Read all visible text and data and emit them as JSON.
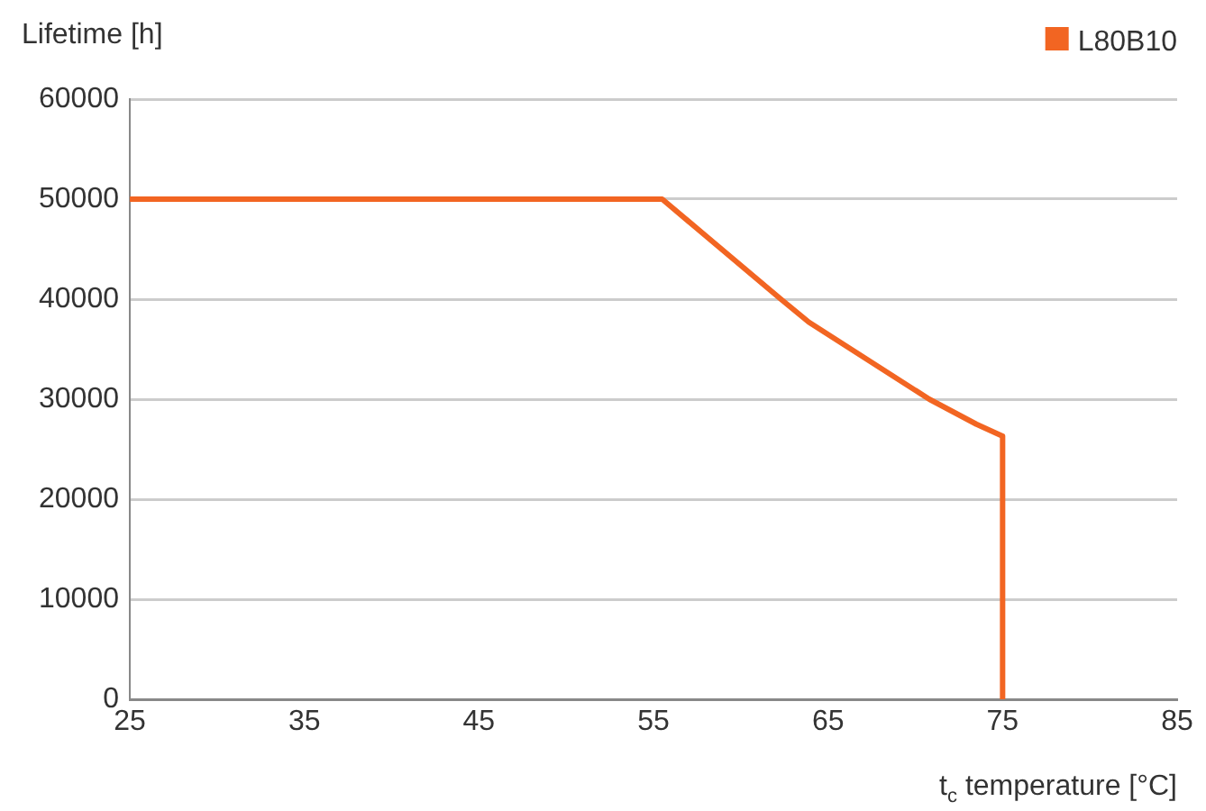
{
  "chart_data": {
    "type": "line",
    "xlabel": "t$_{c}$ temperature [°C]",
    "ylabel": "Lifetime [h]",
    "x": [
      25,
      55.5,
      62.3,
      63.9,
      70.8,
      73.5,
      75,
      75
    ],
    "series": [
      {
        "name": "L80B10",
        "color": "#f26522",
        "values": [
          50000,
          50000,
          40000,
          37700,
          30000,
          27500,
          26300,
          0
        ]
      }
    ],
    "xlim": [
      25,
      85
    ],
    "xticks": [
      25,
      35,
      45,
      55,
      65,
      75,
      85
    ],
    "ylim": [
      0,
      60000
    ],
    "yticks": [
      0,
      10000,
      20000,
      30000,
      40000,
      50000,
      60000
    ],
    "grid": "y",
    "legend": "top right",
    "marker": "none",
    "line_style": "solid"
  }
}
